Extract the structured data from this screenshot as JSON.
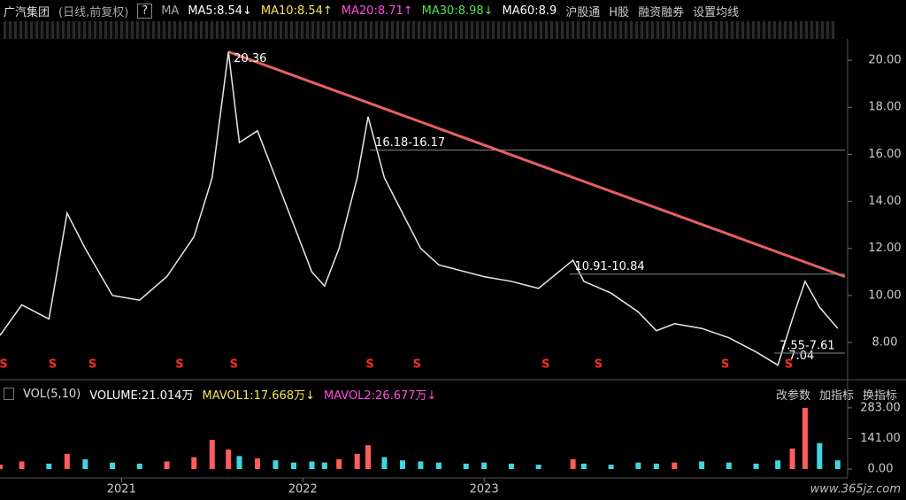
{
  "header": {
    "name": "广汽集团",
    "mode": "(日线,前复权)",
    "help": "?",
    "ma": "MA",
    "ma_values": [
      {
        "text": "MA5:8.54↓",
        "color": "#ffffff"
      },
      {
        "text": "MA10:8.54↑",
        "color": "#f5e65a"
      },
      {
        "text": "MA20:8.71↑",
        "color": "#ff4fe0"
      },
      {
        "text": "MA30:8.98↓",
        "color": "#4fe34f"
      },
      {
        "text": "MA60:8.9",
        "color": "#ffffff"
      }
    ],
    "links": [
      "沪股通",
      "H股",
      "融资融券",
      "设置均线"
    ]
  },
  "volume_header": {
    "name": "VOL(5,10)",
    "items": [
      {
        "text": "VOLUME:21.014万",
        "color": "#ffffff"
      },
      {
        "text": "MAVOL1:17.668万↓",
        "color": "#f5e65a"
      },
      {
        "text": "MAVOL2:26.677万↓",
        "color": "#ff4fe0"
      }
    ],
    "buttons": [
      "改参数",
      "加指标",
      "换指标"
    ]
  },
  "watermark": "www.365jz.com",
  "chart_data": [
    {
      "type": "line",
      "color": "#e8e8e8",
      "x": [
        2020.33,
        2020.45,
        2020.6,
        2020.7,
        2020.8,
        2020.95,
        2021.1,
        2021.25,
        2021.4,
        2021.5,
        2021.59,
        2021.65,
        2021.75,
        2021.85,
        2021.95,
        2022.05,
        2022.12,
        2022.2,
        2022.3,
        2022.36,
        2022.45,
        2022.55,
        2022.65,
        2022.75,
        2022.9,
        2023.0,
        2023.15,
        2023.3,
        2023.49,
        2023.55,
        2023.7,
        2023.85,
        2023.95,
        2024.05,
        2024.2,
        2024.35,
        2024.5,
        2024.62,
        2024.7,
        2024.77,
        2024.85,
        2024.95
      ],
      "values": [
        8.3,
        9.6,
        9.0,
        13.5,
        12.0,
        10.0,
        9.8,
        10.8,
        12.5,
        15.0,
        20.36,
        16.5,
        17.0,
        15.0,
        13.0,
        11.0,
        10.4,
        12.0,
        15.0,
        17.6,
        15.0,
        13.5,
        12.0,
        11.3,
        11.0,
        10.8,
        10.6,
        10.3,
        11.5,
        10.6,
        10.1,
        9.3,
        8.5,
        8.8,
        8.6,
        8.2,
        7.6,
        7.04,
        9.0,
        10.6,
        9.5,
        8.6
      ],
      "xlim": [
        2020.33,
        2024.99
      ],
      "ylim": [
        6.76,
        20.68
      ],
      "yticks": [
        {
          "value": 8,
          "label": "8.00"
        },
        {
          "value": 10,
          "label": "10.00"
        },
        {
          "value": 12,
          "label": "12.00"
        },
        {
          "value": 14,
          "label": "14.00"
        },
        {
          "value": 16,
          "label": "16.00"
        },
        {
          "value": 18,
          "label": "18.00"
        },
        {
          "value": 20,
          "label": "20.00"
        }
      ],
      "annotations": [
        {
          "label": "20.36",
          "x": 2021.59,
          "y": 20.36,
          "line": false
        },
        {
          "label": "16.18-16.17",
          "x": 2022.37,
          "y": 16.18,
          "line": true
        },
        {
          "label": "10.91-10.84",
          "x": 2023.47,
          "y": 10.91,
          "line": true
        },
        {
          "label": "7.04",
          "x": 2024.65,
          "y": 7.04,
          "line": false
        },
        {
          "label": "7.55-7.61",
          "x": 2024.6,
          "y": 7.55,
          "line": true
        }
      ],
      "trendline": {
        "x": [
          2021.59,
          2024.99
        ],
        "y": [
          20.36,
          10.8
        ],
        "color": "#e8605f"
      },
      "signals": {
        "label": "S",
        "color": "#ff2a2a",
        "x": [
          2020.35,
          2020.62,
          2020.84,
          2021.32,
          2021.62,
          2022.37,
          2022.63,
          2023.34,
          2023.63,
          2024.33,
          2024.68
        ]
      }
    },
    {
      "type": "bar",
      "colors": [
        "#ff5c5c",
        "#3fd6e0"
      ],
      "x": [
        2020.33,
        2020.45,
        2020.6,
        2020.7,
        2020.8,
        2020.95,
        2021.1,
        2021.25,
        2021.4,
        2021.5,
        2021.59,
        2021.65,
        2021.75,
        2021.85,
        2021.95,
        2022.05,
        2022.12,
        2022.2,
        2022.3,
        2022.36,
        2022.45,
        2022.55,
        2022.65,
        2022.75,
        2022.9,
        2023.0,
        2023.15,
        2023.3,
        2023.49,
        2023.55,
        2023.7,
        2023.85,
        2023.95,
        2024.05,
        2024.2,
        2024.35,
        2024.5,
        2024.62,
        2024.7,
        2024.77,
        2024.85,
        2024.95
      ],
      "values": [
        20,
        35,
        25,
        70,
        45,
        30,
        25,
        35,
        55,
        135,
        90,
        60,
        50,
        40,
        30,
        35,
        30,
        45,
        70,
        110,
        55,
        40,
        35,
        30,
        25,
        30,
        25,
        20,
        45,
        25,
        20,
        30,
        25,
        30,
        35,
        30,
        25,
        40,
        95,
        283,
        120,
        40
      ],
      "xlim": [
        2020.33,
        2024.99
      ],
      "ylim": [
        0,
        307
      ],
      "yticks": [
        {
          "value": 0,
          "label": "0.00"
        },
        {
          "value": 141,
          "label": "141.00"
        },
        {
          "value": 283,
          "label": "283.00"
        }
      ],
      "xticks": [
        2021,
        2022,
        2023
      ]
    }
  ]
}
